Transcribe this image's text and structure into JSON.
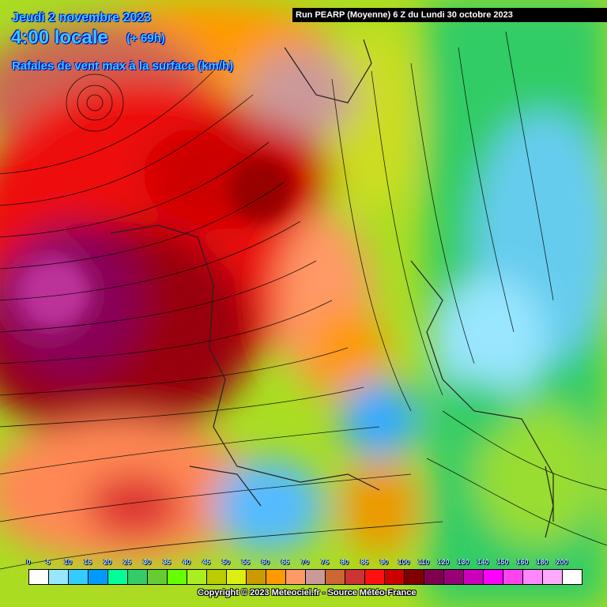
{
  "header": {
    "date": "Jeudi 2 novembre 2023",
    "time": "4:00 locale",
    "lead": "(+ 69h)",
    "parameter": "Rafales de vent max à la surface (km/h)",
    "run": "Run PEARP (Moyenne) 6 Z du Lundi 30 octobre 2023"
  },
  "legend": {
    "labels": [
      "0",
      "5",
      "10",
      "15",
      "20",
      "25",
      "30",
      "35",
      "40",
      "45",
      "50",
      "55",
      "60",
      "65",
      "70",
      "75",
      "80",
      "85",
      "90",
      "100",
      "110",
      "120",
      "130",
      "140",
      "150",
      "160",
      "180",
      "200"
    ],
    "colors": [
      "#ffffff",
      "#99e6ff",
      "#33ccff",
      "#0099ff",
      "#00ff99",
      "#33cc66",
      "#66cc33",
      "#66ff00",
      "#aaee22",
      "#bbcc00",
      "#ddee11",
      "#cc9900",
      "#ff9900",
      "#ff9966",
      "#cc9999",
      "#cc6633",
      "#cc3333",
      "#ff1111",
      "#cc0000",
      "#800000",
      "#800050",
      "#990077",
      "#cc00bb",
      "#ff00ff",
      "#ff44ee",
      "#ff88ff",
      "#ffaaff",
      "#ffffff"
    ]
  },
  "copyright": "Copyright © 2023 Meteociel.fr - Source Météo-France"
}
